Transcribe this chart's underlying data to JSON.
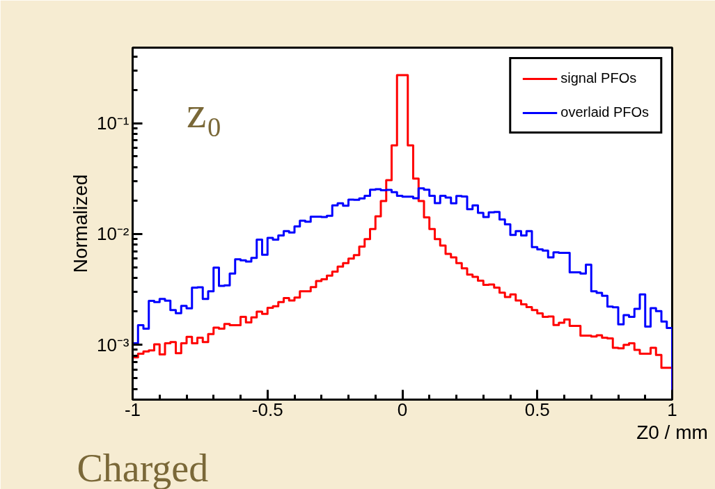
{
  "chart_data": {
    "type": "histogram",
    "xlabel": "Z0 / mm",
    "ylabel": "Normalized",
    "annotations": [
      "z₀",
      "Charged"
    ],
    "bins": [
      -1,
      -0.98,
      -0.96,
      -0.94,
      -0.92,
      -0.9,
      -0.88,
      -0.86,
      -0.84,
      -0.82,
      -0.8,
      -0.78,
      -0.76,
      -0.74,
      -0.72,
      -0.7,
      -0.68,
      -0.66,
      -0.64,
      -0.62,
      -0.6,
      -0.58,
      -0.56,
      -0.54,
      -0.52,
      -0.5,
      -0.48,
      -0.46,
      -0.44,
      -0.42,
      -0.4,
      -0.38,
      -0.36,
      -0.34,
      -0.32,
      -0.3,
      -0.28,
      -0.26,
      -0.24,
      -0.22,
      -0.2,
      -0.18,
      -0.16,
      -0.14,
      -0.12,
      -0.1,
      -0.08,
      -0.06,
      -0.04,
      -0.02,
      0,
      0.02,
      0.04,
      0.06,
      0.08,
      0.1,
      0.12,
      0.14,
      0.16,
      0.18,
      0.2,
      0.22,
      0.24,
      0.26,
      0.28,
      0.3,
      0.32,
      0.34,
      0.36,
      0.38,
      0.4,
      0.42,
      0.44,
      0.46,
      0.48,
      0.5,
      0.52,
      0.54,
      0.56,
      0.58,
      0.6,
      0.62,
      0.64,
      0.66,
      0.68,
      0.7,
      0.72,
      0.74,
      0.76,
      0.78,
      0.8,
      0.82,
      0.84,
      0.86,
      0.88,
      0.9,
      0.92,
      0.94,
      0.96,
      0.98,
      1
    ],
    "series": [
      {
        "name": "signal PFOs",
        "color": "#ff0000",
        "values": [
          0.00077,
          0.00083,
          0.00087,
          0.00089,
          0.00101,
          0.00082,
          0.00103,
          0.00106,
          0.00084,
          0.00103,
          0.00118,
          0.00103,
          0.00116,
          0.00106,
          0.00125,
          0.00143,
          0.0014,
          0.00154,
          0.0015,
          0.0015,
          0.00179,
          0.00159,
          0.00177,
          0.00199,
          0.0019,
          0.00216,
          0.00223,
          0.00243,
          0.00264,
          0.00251,
          0.00267,
          0.00304,
          0.00304,
          0.00331,
          0.00376,
          0.0039,
          0.0042,
          0.00458,
          0.00508,
          0.00546,
          0.006,
          0.00645,
          0.00768,
          0.009,
          0.0111,
          0.0144,
          0.0198,
          0.0306,
          0.063,
          0.271,
          0.271,
          0.063,
          0.0316,
          0.0198,
          0.0141,
          0.0111,
          0.009,
          0.00787,
          0.0066,
          0.00614,
          0.00546,
          0.0049,
          0.0043,
          0.0041,
          0.00379,
          0.00347,
          0.0035,
          0.00328,
          0.00295,
          0.0027,
          0.00285,
          0.00251,
          0.00232,
          0.00219,
          0.00206,
          0.00192,
          0.00179,
          0.0018,
          0.00151,
          0.00158,
          0.00169,
          0.00148,
          0.00148,
          0.00121,
          0.00121,
          0.00119,
          0.00122,
          0.00116,
          0.00114,
          0.00094,
          0.00093,
          0.001,
          0.00103,
          0.0009,
          0.00083,
          0.00083,
          0.00094,
          0.00081,
          0.00062,
          0.00062
        ]
      },
      {
        "name": "overlaid PFOs",
        "color": "#0000ff",
        "values": [
          0.00103,
          0.0015,
          0.0014,
          0.00249,
          0.00243,
          0.00259,
          0.0025,
          0.00206,
          0.00193,
          0.00224,
          0.00213,
          0.00328,
          0.0033,
          0.00259,
          0.00304,
          0.00497,
          0.0034,
          0.00344,
          0.0044,
          0.0059,
          0.00578,
          0.00564,
          0.00608,
          0.0089,
          0.0065,
          0.0092,
          0.0089,
          0.0097,
          0.0106,
          0.0103,
          0.0117,
          0.0132,
          0.0129,
          0.0143,
          0.0143,
          0.0142,
          0.0146,
          0.0181,
          0.0189,
          0.018,
          0.0204,
          0.0203,
          0.0209,
          0.0221,
          0.0251,
          0.0253,
          0.0248,
          0.025,
          0.0238,
          0.0221,
          0.0217,
          0.0217,
          0.021,
          0.0258,
          0.0251,
          0.0221,
          0.019,
          0.0221,
          0.0213,
          0.0189,
          0.022,
          0.0218,
          0.0167,
          0.0181,
          0.0155,
          0.0142,
          0.0157,
          0.0158,
          0.0135,
          0.0122,
          0.0098,
          0.0106,
          0.0097,
          0.0106,
          0.0076,
          0.00726,
          0.00708,
          0.00614,
          0.00683,
          0.00676,
          0.00676,
          0.00451,
          0.00451,
          0.0044,
          0.00528,
          0.00304,
          0.00294,
          0.00277,
          0.00221,
          0.00218,
          0.00153,
          0.00185,
          0.00179,
          0.00211,
          0.00285,
          0.00146,
          0.00214,
          0.00201,
          0.00162,
          0.00142
        ]
      }
    ],
    "xlim": [
      -1,
      1
    ],
    "ylim": [
      0.00032,
      0.48
    ],
    "xticks": [
      {
        "value": -1,
        "label": "-1"
      },
      {
        "value": -0.5,
        "label": "-0.5"
      },
      0,
      {
        "value": 0.5,
        "label": "0.5"
      },
      1
    ],
    "yticks": [
      {
        "value": 0.001,
        "label": "10⁻³"
      },
      {
        "value": 0.01,
        "label": "10⁻²"
      },
      {
        "value": 0.1,
        "label": "10⁻¹"
      }
    ],
    "log": "y",
    "grid": false,
    "legend": "top right",
    "line_style": "solid",
    "marker": "none"
  }
}
